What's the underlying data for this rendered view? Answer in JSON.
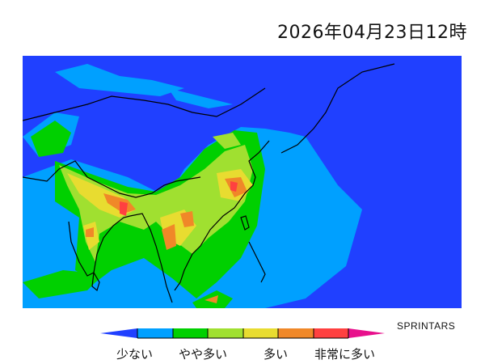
{
  "title": "2026年04月23日12時",
  "credit": "SPRINTARS",
  "legend": {
    "labels": [
      "少ない",
      "やや多い",
      "多い",
      "非常に多い"
    ],
    "colors": [
      "#2040ff",
      "#00a0ff",
      "#00d000",
      "#a0e030",
      "#e8dc30",
      "#f08828",
      "#ff4040",
      "#e8108c"
    ]
  }
}
